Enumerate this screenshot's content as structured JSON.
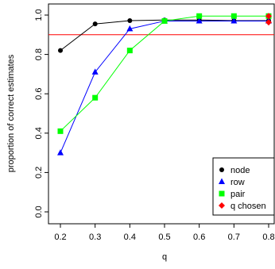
{
  "chart_data": {
    "type": "line",
    "xlabel": "q",
    "ylabel": "proportion of correct estimates",
    "xlim": [
      0.2,
      0.8
    ],
    "ylim": [
      0.0,
      1.0
    ],
    "x_ticks": [
      "0.2",
      "0.3",
      "0.4",
      "0.5",
      "0.6",
      "0.7",
      "0.8"
    ],
    "y_ticks": [
      "0.0",
      "0.2",
      "0.4",
      "0.6",
      "0.8",
      "1.0"
    ],
    "grid": false,
    "legend_position": "bottom-right",
    "x": [
      0.2,
      0.3,
      0.4,
      0.5,
      0.6,
      0.7,
      0.8
    ],
    "series": [
      {
        "name": "node",
        "color": "#000000",
        "marker": "circle",
        "values": [
          0.82,
          0.955,
          0.972,
          0.975,
          0.975,
          0.972,
          0.972
        ]
      },
      {
        "name": "row",
        "color": "#0000ff",
        "marker": "triangle",
        "values": [
          0.3,
          0.71,
          0.93,
          0.97,
          0.97,
          0.97,
          0.97
        ]
      },
      {
        "name": "pair",
        "color": "#00ff00",
        "marker": "square",
        "values": [
          0.41,
          0.58,
          0.82,
          0.97,
          0.995,
          0.995,
          0.995
        ]
      }
    ],
    "chosen": {
      "name": "q chosen",
      "color": "#ff0000",
      "marker": "diamond",
      "points": [
        [
          0.8,
          0.995
        ],
        [
          0.8,
          0.963
        ]
      ]
    },
    "reference_line": {
      "y": 0.9,
      "color": "#ff0000"
    }
  }
}
